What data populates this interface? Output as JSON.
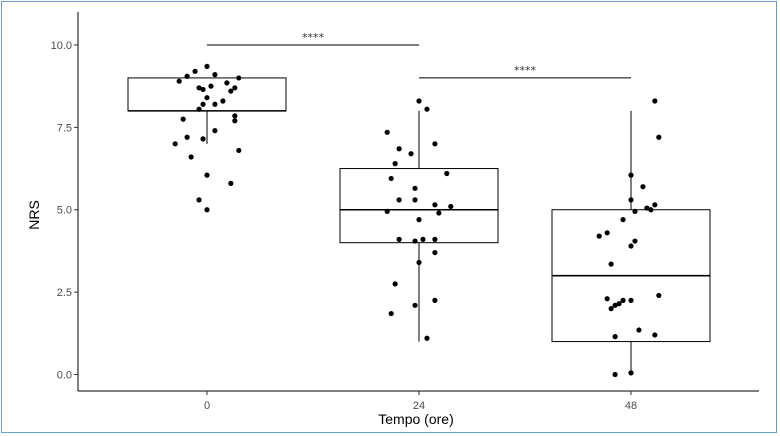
{
  "colors": {
    "frame": "#6a9cc9",
    "ink": "#000000",
    "tick_text": "#4d4d4d"
  },
  "chart_data": {
    "type": "box",
    "xlabel": "Tempo (ore)",
    "ylabel": "NRS",
    "categories": [
      "0",
      "24",
      "48"
    ],
    "ylim": [
      -0.5,
      11
    ],
    "yticks": [
      0.0,
      2.5,
      5.0,
      7.5,
      10.0
    ],
    "ytick_labels": [
      "0.0",
      "2.5",
      "5.0",
      "7.5",
      "10.0"
    ],
    "grid": false,
    "boxes": [
      {
        "category": "0",
        "q1": 8.0,
        "median": 8.0,
        "q3": 9.0,
        "whisker_low": 7.0,
        "whisker_high": 9.0
      },
      {
        "category": "24",
        "q1": 4.0,
        "median": 5.0,
        "q3": 6.25,
        "whisker_low": 1.0,
        "whisker_high": 8.0
      },
      {
        "category": "48",
        "q1": 1.0,
        "median": 3.0,
        "q3": 5.0,
        "whisker_low": 0.0,
        "whisker_high": 8.0
      }
    ],
    "points": [
      {
        "category": "0",
        "values": [
          9.35,
          9.2,
          9.1,
          9.0,
          9.05,
          8.9,
          8.85,
          8.75,
          8.7,
          8.6,
          8.7,
          8.65,
          8.4,
          8.3,
          8.2,
          8.2,
          8.05,
          7.85,
          7.7,
          7.75,
          7.4,
          7.2,
          7.15,
          7.0,
          6.8,
          6.6,
          6.05,
          5.8,
          5.3,
          5.0
        ],
        "jitter": [
          0.0,
          -0.15,
          0.1,
          0.4,
          -0.25,
          -0.35,
          0.25,
          0.05,
          -0.1,
          0.3,
          0.35,
          -0.05,
          0.0,
          0.2,
          0.1,
          -0.05,
          -0.1,
          0.35,
          0.35,
          -0.3,
          0.1,
          -0.25,
          -0.05,
          -0.4,
          0.4,
          -0.2,
          0.0,
          0.3,
          -0.1,
          0.0
        ]
      },
      {
        "category": "24",
        "values": [
          8.3,
          8.05,
          7.35,
          7.0,
          6.85,
          6.7,
          6.4,
          6.1,
          5.95,
          5.65,
          5.3,
          5.3,
          5.15,
          5.1,
          4.95,
          4.9,
          4.7,
          4.1,
          4.1,
          4.05,
          4.1,
          3.7,
          3.4,
          2.75,
          2.25,
          2.1,
          1.85,
          1.1
        ],
        "jitter": [
          0.0,
          0.1,
          -0.4,
          0.2,
          -0.25,
          -0.1,
          -0.3,
          0.35,
          -0.35,
          -0.05,
          -0.25,
          -0.05,
          0.2,
          0.4,
          -0.4,
          0.25,
          0.0,
          -0.25,
          0.05,
          -0.05,
          0.2,
          0.2,
          0.0,
          -0.3,
          0.2,
          -0.05,
          -0.35,
          0.1
        ]
      },
      {
        "category": "48",
        "values": [
          8.3,
          7.2,
          6.05,
          5.7,
          5.3,
          5.15,
          5.05,
          5.0,
          4.95,
          4.7,
          4.3,
          4.2,
          4.05,
          3.9,
          3.35,
          2.4,
          2.3,
          2.25,
          2.25,
          2.15,
          2.1,
          2.0,
          1.35,
          1.2,
          1.15,
          0.05,
          0.0
        ],
        "jitter": [
          0.3,
          0.35,
          0.0,
          0.15,
          0.0,
          0.3,
          0.2,
          0.25,
          0.05,
          -0.1,
          -0.3,
          -0.4,
          0.05,
          0.0,
          -0.25,
          0.35,
          -0.3,
          -0.1,
          0.0,
          -0.15,
          -0.2,
          -0.25,
          0.1,
          0.3,
          -0.2,
          0.0,
          -0.2
        ]
      }
    ],
    "significance": [
      {
        "from": "0",
        "to": "24",
        "y": 10.0,
        "label": "****"
      },
      {
        "from": "24",
        "to": "48",
        "y": 9.0,
        "label": "****"
      }
    ]
  }
}
